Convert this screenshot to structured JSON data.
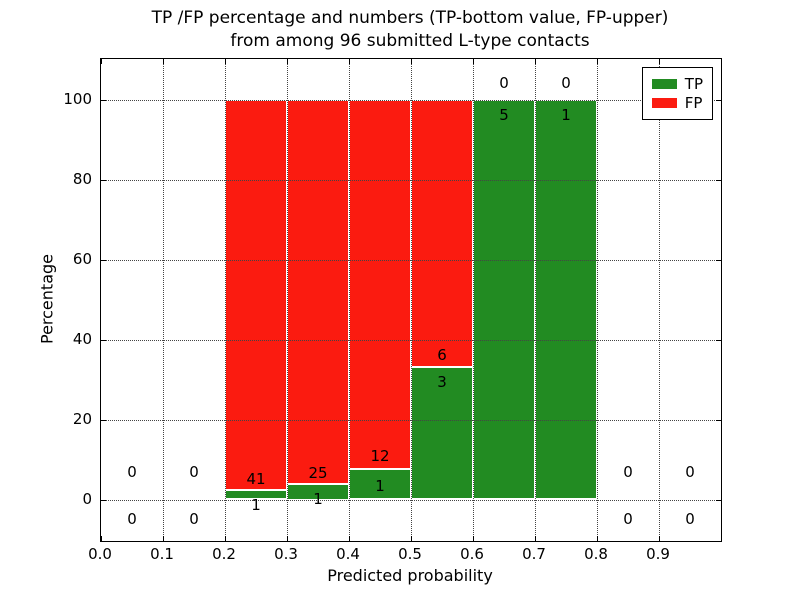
{
  "figure": {
    "background": "#ffffff"
  },
  "chart_data": {
    "type": "bar",
    "stacked": true,
    "title_line1": "TP /FP percentage and numbers (TP-bottom value, FP-upper)",
    "title_line2": "from among 96 submitted L-type contacts",
    "xlabel": "Predicted probability",
    "ylabel": "Percentage",
    "total_submitted": 96,
    "xlim": [
      0.0,
      1.0
    ],
    "ylim": [
      -10.4,
      110.4
    ],
    "xticks": [
      {
        "value": 0.0,
        "label": "0.0"
      },
      {
        "value": 0.1,
        "label": "0.1"
      },
      {
        "value": 0.2,
        "label": "0.2"
      },
      {
        "value": 0.3,
        "label": "0.3"
      },
      {
        "value": 0.4,
        "label": "0.4"
      },
      {
        "value": 0.5,
        "label": "0.5"
      },
      {
        "value": 0.6,
        "label": "0.6"
      },
      {
        "value": 0.7,
        "label": "0.7"
      },
      {
        "value": 0.8,
        "label": "0.8"
      },
      {
        "value": 0.9,
        "label": "0.9"
      }
    ],
    "yticks": [
      {
        "value": 0,
        "label": "0"
      },
      {
        "value": 20,
        "label": "20"
      },
      {
        "value": 40,
        "label": "40"
      },
      {
        "value": 60,
        "label": "60"
      },
      {
        "value": 80,
        "label": "80"
      },
      {
        "value": 100,
        "label": "100"
      }
    ],
    "grid": {
      "style": "dotted",
      "color": "#444444",
      "above_bars": true
    },
    "colors": {
      "tp": "#228b22",
      "fp": "#fb1b10",
      "bar_edge": "#ffffff",
      "axis": "#000000",
      "text": "#000000"
    },
    "legend": {
      "position": "upper-right",
      "entries": [
        {
          "label": "TP",
          "color": "#228b22"
        },
        {
          "label": "FP",
          "color": "#fb1b10"
        }
      ]
    },
    "bins": [
      {
        "range": "0.0-0.1",
        "x0": 0.0,
        "x1": 0.1,
        "tp_count": 0,
        "fp_count": 0,
        "tp_pct": 0,
        "fp_pct": 0,
        "fp_label": "0",
        "tp_label": "0",
        "fp_label_y": 6.8,
        "tp_label_y": -4.8
      },
      {
        "range": "0.1-0.2",
        "x0": 0.1,
        "x1": 0.2,
        "tp_count": 0,
        "fp_count": 0,
        "tp_pct": 0,
        "fp_pct": 0,
        "fp_label": "0",
        "tp_label": "0",
        "fp_label_y": 6.8,
        "tp_label_y": -4.8
      },
      {
        "range": "0.2-0.3",
        "x0": 0.2,
        "x1": 0.3,
        "tp_count": 1,
        "fp_count": 41,
        "tp_pct": 2.38,
        "fp_pct": 97.62,
        "fp_label": "41",
        "tp_label": "1",
        "fp_label_y": 5.2,
        "tp_label_y": -1.3
      },
      {
        "range": "0.3-0.4",
        "x0": 0.3,
        "x1": 0.4,
        "tp_count": 1,
        "fp_count": 25,
        "tp_pct": 3.85,
        "fp_pct": 96.15,
        "fp_label": "25",
        "tp_label": "1",
        "fp_label_y": 6.6,
        "tp_label_y": 0.2
      },
      {
        "range": "0.4-0.5",
        "x0": 0.4,
        "x1": 0.5,
        "tp_count": 1,
        "fp_count": 12,
        "tp_pct": 7.69,
        "fp_pct": 92.31,
        "fp_label": "12",
        "tp_label": "1",
        "fp_label_y": 11.0,
        "tp_label_y": 3.4
      },
      {
        "range": "0.5-0.6",
        "x0": 0.5,
        "x1": 0.6,
        "tp_count": 3,
        "fp_count": 6,
        "tp_pct": 33.33,
        "fp_pct": 66.67,
        "fp_label": "6",
        "tp_label": "3",
        "fp_label_y": 36.3,
        "tp_label_y": 29.5
      },
      {
        "range": "0.6-0.7",
        "x0": 0.6,
        "x1": 0.7,
        "tp_count": 5,
        "fp_count": 0,
        "tp_pct": 100,
        "fp_pct": 0,
        "fp_label": "0",
        "tp_label": "5",
        "fp_label_y": 104.3,
        "tp_label_y": 96.4
      },
      {
        "range": "0.7-0.8",
        "x0": 0.7,
        "x1": 0.8,
        "tp_count": 1,
        "fp_count": 0,
        "tp_pct": 100,
        "fp_pct": 0,
        "fp_label": "0",
        "tp_label": "1",
        "fp_label_y": 104.3,
        "tp_label_y": 96.4
      },
      {
        "range": "0.8-0.9",
        "x0": 0.8,
        "x1": 0.9,
        "tp_count": 0,
        "fp_count": 0,
        "tp_pct": 0,
        "fp_pct": 0,
        "fp_label": "0",
        "tp_label": "0",
        "fp_label_y": 6.8,
        "tp_label_y": -4.8
      },
      {
        "range": "0.9-1.0",
        "x0": 0.9,
        "x1": 1.0,
        "tp_count": 0,
        "fp_count": 0,
        "tp_pct": 0,
        "fp_pct": 0,
        "fp_label": "0",
        "tp_label": "0",
        "fp_label_y": 6.8,
        "tp_label_y": -4.8
      }
    ]
  }
}
